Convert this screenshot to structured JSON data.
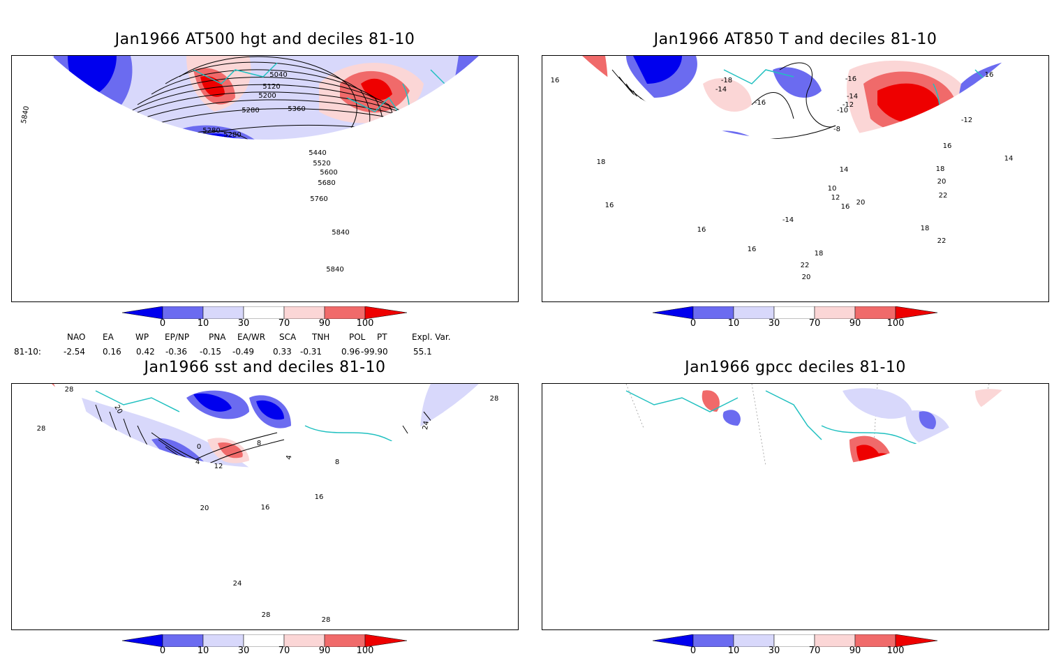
{
  "colors": {
    "deep_blue": "#0000ee",
    "mid_blue": "#6b6bf0",
    "light_blue": "#d8d8fb",
    "white": "#ffffff",
    "light_red": "#fbd6d6",
    "mid_red": "#f06a6a",
    "deep_red": "#ee0000",
    "coast": "#20c0c0",
    "contour": "#000000"
  },
  "panels": {
    "p1": {
      "title": "Jan1966 AT500 hgt and deciles 81-10"
    },
    "p2": {
      "title": "Jan1966 AT850 T and deciles 81-10"
    },
    "p3": {
      "title": "Jan1966 sst and deciles 81-10"
    },
    "p4": {
      "title": "Jan1966 gpcc deciles 81-10"
    }
  },
  "contour_labels": {
    "p1": [
      "5840",
      "5040",
      "5120",
      "5200",
      "5280",
      "5360",
      "5280",
      "5280",
      "5440",
      "5520",
      "5600",
      "5680",
      "5760",
      "5840",
      "5840"
    ],
    "p2": [
      "16",
      "16",
      "-18",
      "-14",
      "-16",
      "-14",
      "-12",
      "-10",
      "-8",
      "-16",
      "-12",
      "16",
      "18",
      "16",
      "14",
      "16",
      "18",
      "20",
      "22",
      "16",
      "-14",
      "14",
      "12",
      "10",
      "16",
      "18",
      "22",
      "20",
      "18",
      "22",
      "20"
    ],
    "p3": [
      "28",
      "28",
      "20",
      "0",
      "4",
      "8",
      "12",
      "16",
      "20",
      "24",
      "28",
      "28",
      "24",
      "28",
      "16",
      "8",
      "4"
    ]
  },
  "colorbar": {
    "ticks": [
      "0",
      "10",
      "30",
      "70",
      "90",
      "100"
    ]
  },
  "indices": {
    "headers": [
      "NAO",
      "EA",
      "WP",
      "EP/NP",
      "PNA",
      "EA/WR",
      "SCA",
      "TNH",
      "POL",
      "PT",
      "Expl. Var."
    ],
    "row_label": "81-10:",
    "values": [
      "-2.54",
      "0.16",
      "0.42",
      "-0.36",
      "-0.15",
      "-0.49",
      "0.33",
      "-0.31",
      "0.96",
      "-99.90",
      "55.1"
    ]
  }
}
